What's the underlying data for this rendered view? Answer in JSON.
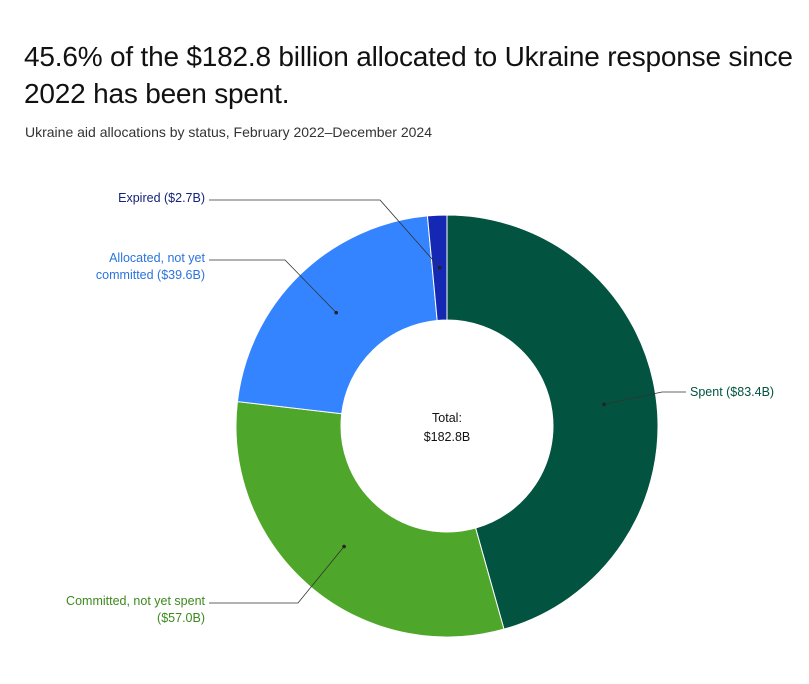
{
  "title": "45.6% of the $182.8 billion allocated to Ukraine response since 2022 has been spent.",
  "subtitle": "Ukraine aid allocations by status, February 2022–December 2024",
  "chart_data": {
    "type": "pie",
    "variant": "donut",
    "title": "45.6% of the $182.8 billion allocated to Ukraine response since 2022 has been spent.",
    "subtitle": "Ukraine aid allocations by status, February 2022–December 2024",
    "unit": "$B",
    "total": 182.8,
    "center_label": {
      "line1": "Total:",
      "line2": "$182.8B"
    },
    "legend": "none",
    "slices": [
      {
        "key": "spent",
        "label_lines": [
          "Spent ($83.4B)"
        ],
        "value": 83.4,
        "color": "#02533F"
      },
      {
        "key": "committed",
        "label_lines": [
          "Committed, not yet spent",
          "($57.0B)"
        ],
        "value": 57.0,
        "color": "#4EA72A"
      },
      {
        "key": "allocated",
        "label_lines": [
          "Allocated, not yet",
          "committed ($39.6B)"
        ],
        "value": 39.6,
        "color": "#3484FF"
      },
      {
        "key": "expired",
        "label_lines": [
          "Expired ($2.7B)"
        ],
        "value": 2.7,
        "color": "#1428B4"
      }
    ],
    "label_colors": {
      "spent": "#02533F",
      "committed": "#3C8A1E",
      "allocated": "#2B74DD",
      "expired": "#14237A"
    }
  }
}
